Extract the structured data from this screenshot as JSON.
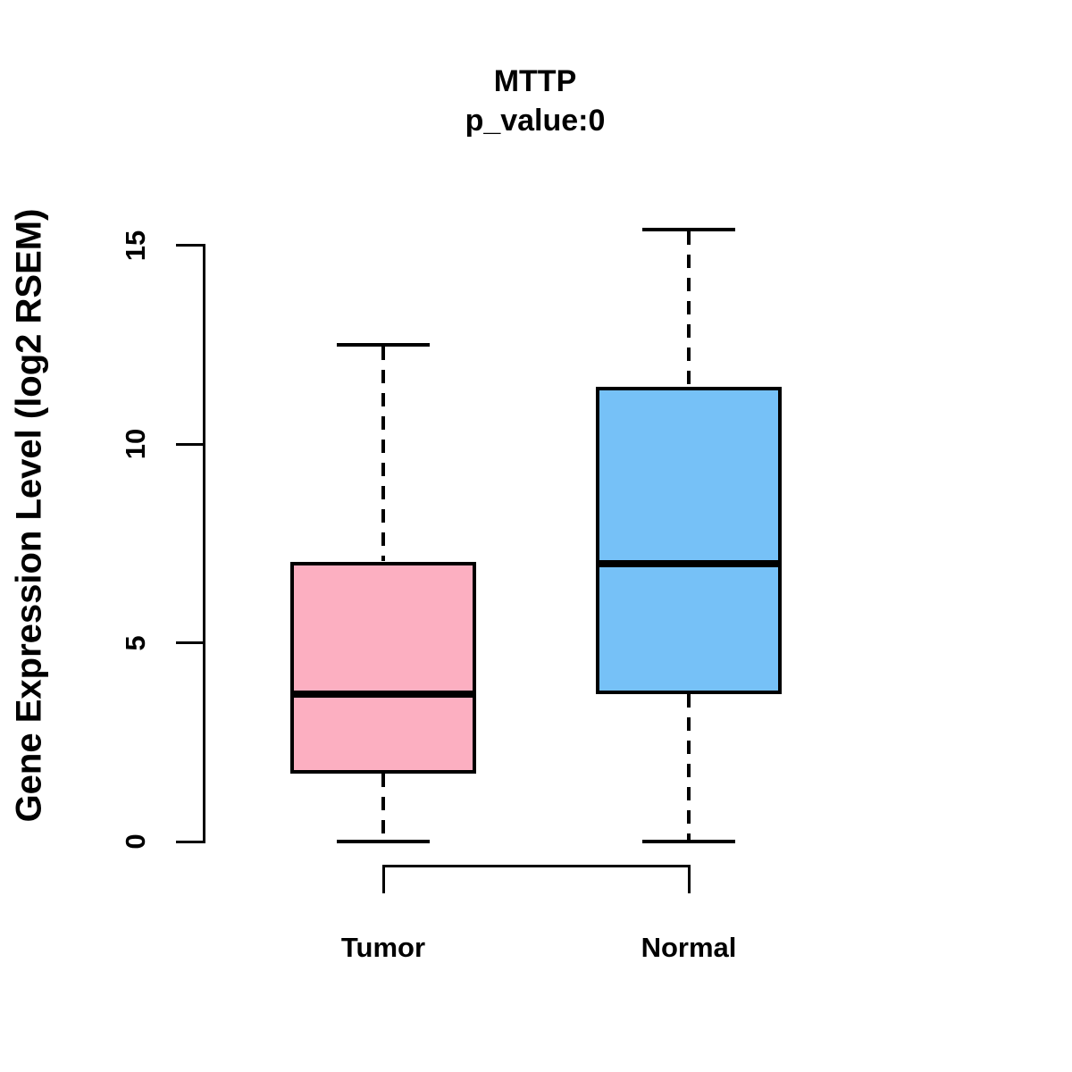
{
  "chart_data": {
    "type": "boxplot",
    "title": "MTTP",
    "subtitle": "p_value:0",
    "ylabel": "Gene Expression Level (log2 RSEM)",
    "xlabel": "",
    "yticks": [
      0,
      5,
      10,
      15
    ],
    "ylim": [
      0,
      15.5
    ],
    "grid": false,
    "legend": "none",
    "categories": [
      "Tumor",
      "Normal"
    ],
    "series": [
      {
        "name": "Tumor",
        "fill_color": "#FCAFC1",
        "whisker_low": 0,
        "q1": 1.7,
        "median": 3.7,
        "q3": 7.05,
        "whisker_high": 12.5
      },
      {
        "name": "Normal",
        "fill_color": "#76C1F7",
        "whisker_low": 0,
        "q1": 3.7,
        "median": 7.0,
        "q3": 11.45,
        "whisker_high": 15.4
      }
    ],
    "line_color": "#000000",
    "background_color": "#FFFFFF"
  }
}
